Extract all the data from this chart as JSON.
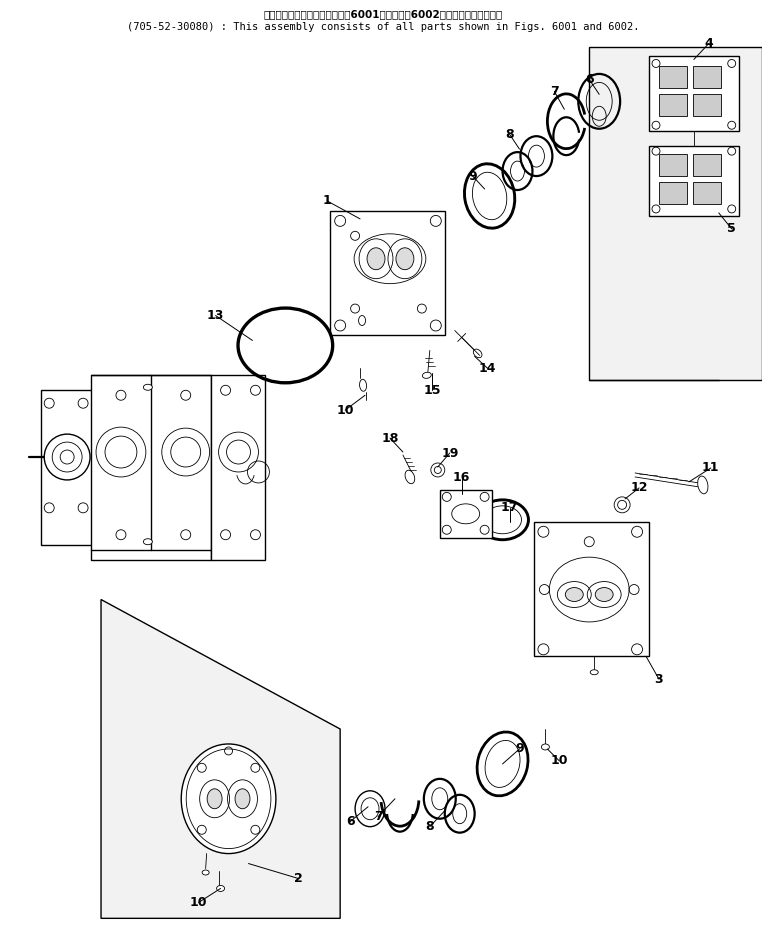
{
  "title_japanese": "このアセンブリの構成部品は第6001図および第6002図の部品を含みます。",
  "title_english": "(705-52-30080) : This assembly consists of all parts shown in Figs. 6001 and 6002.",
  "bg_color": "#ffffff",
  "lc": "#000000",
  "lw_main": 1.0,
  "lw_thick": 1.6,
  "lw_thin": 0.6,
  "label_fontsize": 9
}
